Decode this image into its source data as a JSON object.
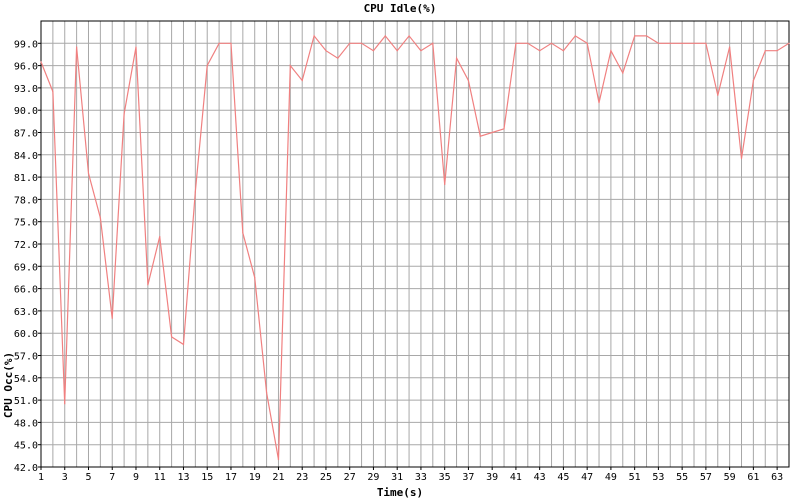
{
  "chart_data": {
    "type": "line",
    "title": "CPU Idle(%)",
    "xlabel": "Time(s)",
    "ylabel": "CPU Occ(%)",
    "xlim": [
      1,
      64
    ],
    "ylim": [
      42.0,
      102.0
    ],
    "y_ticks": [
      "42.0",
      "45.0",
      "48.0",
      "51.0",
      "54.0",
      "57.0",
      "60.0",
      "63.0",
      "66.0",
      "69.0",
      "72.0",
      "75.0",
      "78.0",
      "81.0",
      "84.0",
      "87.0",
      "90.0",
      "93.0",
      "96.0",
      "99.0"
    ],
    "x_ticks": [
      "1",
      "3",
      "5",
      "7",
      "9",
      "11",
      "13",
      "15",
      "17",
      "19",
      "21",
      "23",
      "25",
      "27",
      "29",
      "31",
      "33",
      "35",
      "37",
      "39",
      "41",
      "43",
      "45",
      "47",
      "49",
      "51",
      "53",
      "55",
      "57",
      "59",
      "61",
      "63"
    ],
    "grid": true,
    "line_color": "#f08080",
    "series": [
      {
        "x": [
          1,
          2,
          3,
          4,
          5,
          6,
          7,
          8,
          9,
          10,
          11,
          12,
          13,
          14,
          15,
          16,
          17,
          18,
          19,
          20,
          21,
          22,
          23,
          24,
          25,
          26,
          27,
          28,
          29,
          30,
          31,
          32,
          33,
          34,
          35,
          36,
          37,
          38,
          39,
          40,
          41,
          42,
          43,
          44,
          45,
          46,
          47,
          48,
          49,
          50,
          51,
          52,
          53,
          54,
          55,
          56,
          57,
          58,
          59,
          60,
          61,
          62,
          63,
          64
        ],
        "values": [
          96.5,
          92.5,
          50.5,
          98.5,
          81.5,
          75.5,
          62.0,
          89.5,
          98.5,
          66.5,
          73.0,
          59.5,
          58.5,
          79.0,
          96.0,
          99.0,
          99.0,
          73.5,
          67.5,
          52.0,
          43.0,
          96.0,
          94.0,
          100.0,
          98.0,
          97.0,
          99.0,
          99.0,
          98.0,
          100.0,
          98.0,
          100.0,
          98.0,
          99.0,
          80.0,
          97.0,
          94.0,
          86.5,
          87.0,
          87.5,
          99.0,
          99.0,
          98.0,
          99.0,
          98.0,
          100.0,
          99.0,
          91.0,
          98.0,
          95.0,
          100.0,
          100.0,
          99.0,
          99.0,
          99.0,
          99.0,
          99.0,
          92.0,
          98.5,
          83.5,
          94.0,
          98.0,
          98.0,
          99.0
        ]
      }
    ]
  }
}
